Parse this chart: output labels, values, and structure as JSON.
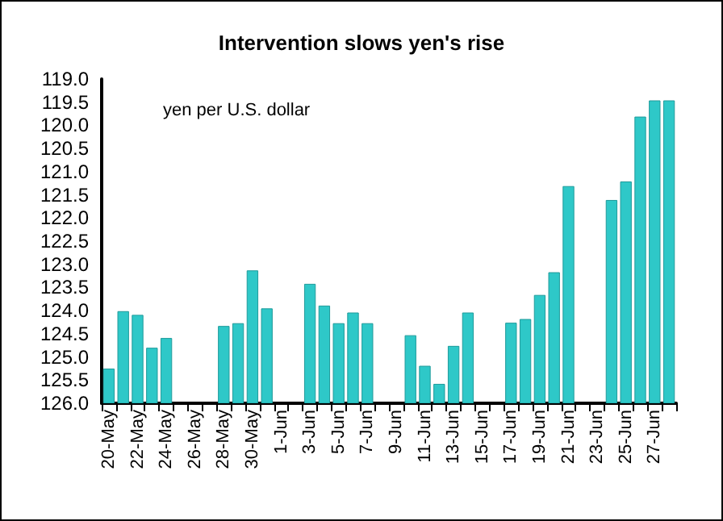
{
  "chart_data": {
    "type": "bar",
    "title": "Intervention slows yen's rise",
    "annotations": [
      "yen per U.S. dollar"
    ],
    "categories": [
      "20-May",
      null,
      "22-May",
      null,
      "24-May",
      null,
      "26-May",
      null,
      "28-May",
      null,
      "30-May",
      null,
      "1-Jun",
      null,
      "3-Jun",
      null,
      "5-Jun",
      null,
      "7-Jun",
      null,
      "9-Jun",
      null,
      "11-Jun",
      null,
      "13-Jun",
      null,
      "15-Jun",
      null,
      "17-Jun",
      null,
      "19-Jun",
      null,
      "21-Jun",
      null,
      "23-Jun",
      null,
      "25-Jun",
      null,
      "27-Jun",
      null
    ],
    "values": [
      -0.74,
      -1.98,
      -1.9,
      -1.19,
      -1.4,
      null,
      null,
      null,
      -1.66,
      -1.72,
      -2.86,
      -2.04,
      null,
      null,
      -2.57,
      -2.1,
      -1.72,
      -1.95,
      -1.72,
      null,
      null,
      -1.46,
      -0.8,
      -0.41,
      -1.23,
      -1.95,
      null,
      null,
      -1.73,
      -1.81,
      -2.33,
      -2.82,
      -4.68,
      null,
      null,
      -4.38,
      -4.78,
      -6.18,
      -6.53,
      -6.53
    ],
    "color": "#2ec8c8",
    "ylim": [
      126,
      119
    ],
    "yticks": [
      {
        "value": 126,
        "label": "126.0"
      },
      125.5,
      {
        "value": 125,
        "label": "125.0"
      },
      124.5,
      {
        "value": 124,
        "label": "124.0"
      },
      123.5,
      {
        "value": 123,
        "label": "123.0"
      },
      122.5,
      {
        "value": 122,
        "label": "122.0"
      },
      121.5,
      {
        "value": 121,
        "label": "121.0"
      },
      120.5,
      {
        "value": 120,
        "label": "120.0"
      },
      119.5,
      {
        "value": 119,
        "label": "119.0"
      }
    ],
    "base": [
      126,
      126,
      126,
      126,
      126,
      null,
      null,
      null,
      126,
      126,
      126,
      126,
      null,
      null,
      126,
      126,
      126,
      126,
      126,
      null,
      null,
      126,
      126,
      126,
      126,
      126,
      null,
      null,
      126,
      126,
      126,
      126,
      126,
      null,
      null,
      126,
      126,
      126,
      126,
      126
    ],
    "grid": false
  }
}
